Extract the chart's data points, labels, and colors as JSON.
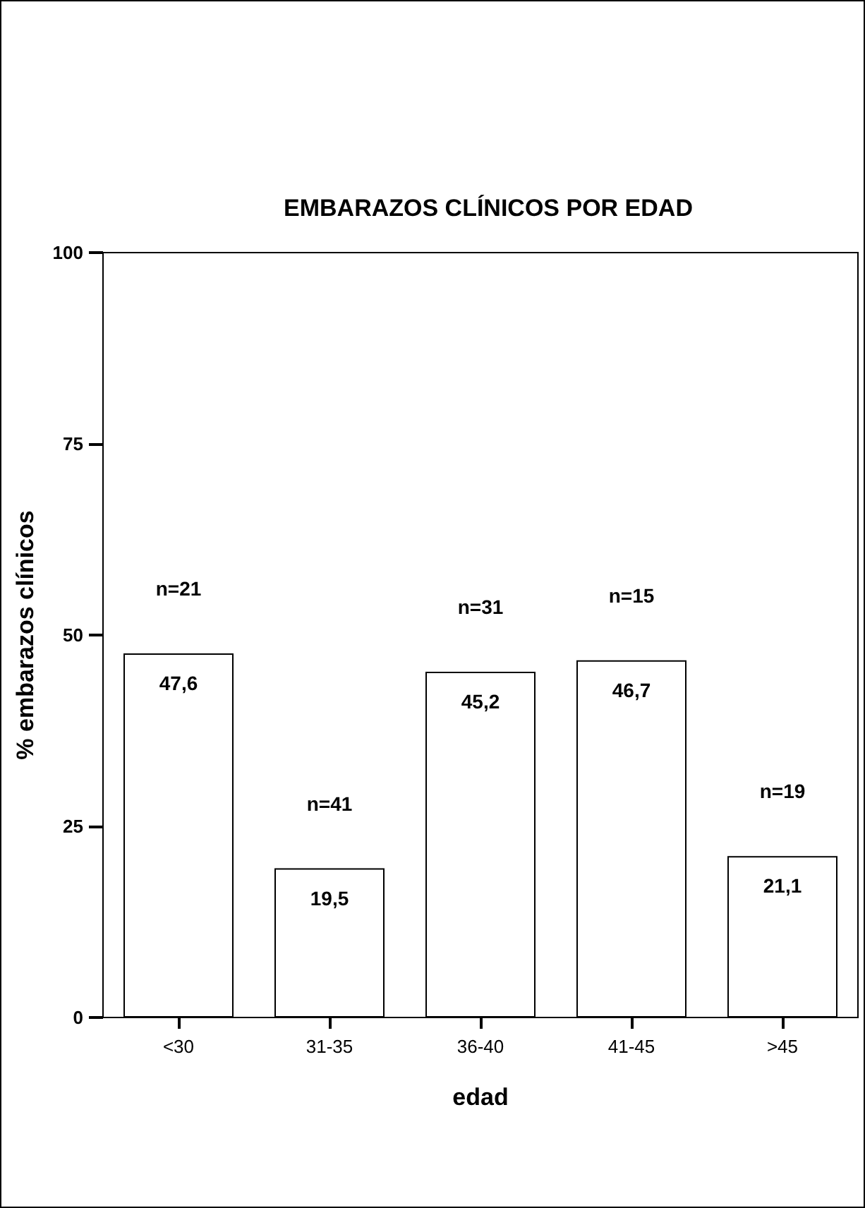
{
  "chart_data": {
    "type": "bar",
    "title": "EMBARAZOS CLÍNICOS POR EDAD",
    "xlabel": "edad",
    "ylabel": "% embarazos clínicos",
    "categories": [
      "<30",
      "31-35",
      "36-40",
      "41-45",
      ">45"
    ],
    "values": [
      47.6,
      19.5,
      45.2,
      46.7,
      21.1
    ],
    "value_labels": [
      "47,6",
      "19,5",
      "45,2",
      "46,7",
      "21,1"
    ],
    "color": "#ffffff",
    "ylim": [
      0,
      100
    ],
    "yticks": [
      0,
      25,
      50,
      75,
      100
    ],
    "grid": false,
    "annotations": [
      "n=21",
      "n=41",
      "n=31",
      "n=15",
      "n=19"
    ]
  }
}
